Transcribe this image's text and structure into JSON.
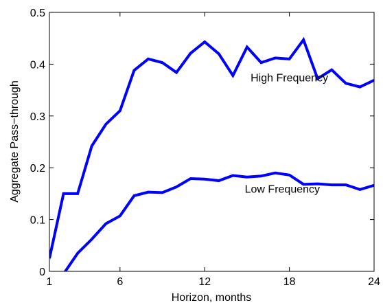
{
  "chart_data": {
    "type": "line",
    "title": "",
    "xlabel": "Horizon, months",
    "ylabel": "Aggregate Pass−through",
    "xlim": [
      1,
      24
    ],
    "ylim": [
      0,
      0.5
    ],
    "xticks": [
      1,
      6,
      12,
      18,
      24
    ],
    "xtick_labels": [
      "1",
      "6",
      "12",
      "18",
      "24"
    ],
    "yticks": [
      0,
      0.1,
      0.2,
      0.3,
      0.4,
      0.5
    ],
    "ytick_labels": [
      "0",
      "0.1",
      "0.2",
      "0.3",
      "0.4",
      "0.5"
    ],
    "grid": false,
    "legend": "none",
    "line_color": "#0000ff",
    "x": [
      1,
      2,
      3,
      4,
      5,
      6,
      7,
      8,
      9,
      10,
      11,
      12,
      13,
      14,
      15,
      16,
      17,
      18,
      19,
      20,
      21,
      22,
      23,
      24
    ],
    "series": [
      {
        "name": "High Frequency",
        "values": [
          0.025,
          0.15,
          0.15,
          0.242,
          0.284,
          0.31,
          0.388,
          0.41,
          0.403,
          0.384,
          0.421,
          0.443,
          0.42,
          0.378,
          0.433,
          0.403,
          0.412,
          0.41,
          0.447,
          0.372,
          0.389,
          0.363,
          0.356,
          0.369
        ]
      },
      {
        "name": "Low Frequency",
        "values": [
          -0.02,
          -0.005,
          0.035,
          0.062,
          0.092,
          0.107,
          0.146,
          0.153,
          0.152,
          0.163,
          0.179,
          0.178,
          0.175,
          0.185,
          0.182,
          0.184,
          0.19,
          0.186,
          0.168,
          0.169,
          0.167,
          0.167,
          0.158,
          0.166
        ]
      }
    ],
    "annotations": [
      {
        "text": "High Frequency",
        "x": 18,
        "y": 0.375
      },
      {
        "text": "Low Frequency",
        "x": 17.5,
        "y": 0.16
      }
    ]
  }
}
